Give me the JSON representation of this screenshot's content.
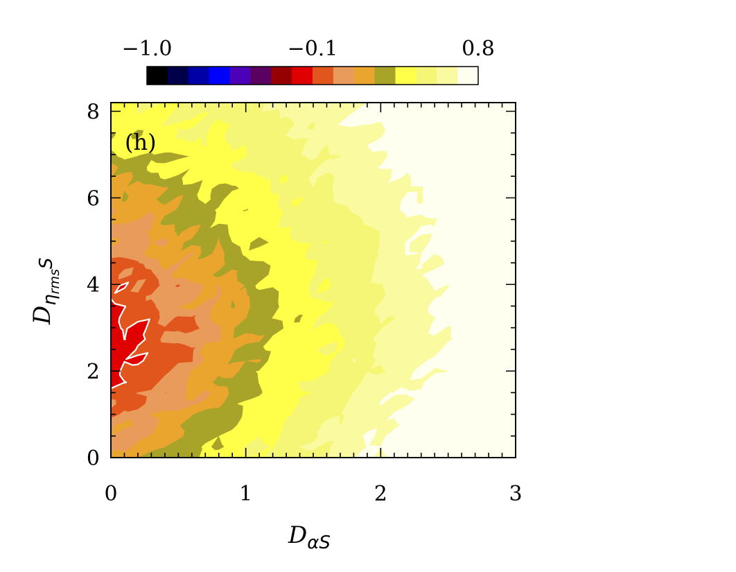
{
  "chart_data": {
    "type": "heatmap",
    "panel_label": "(h)",
    "xlabel": {
      "main": "D",
      "sub": "αS"
    },
    "ylabel": {
      "main": "D",
      "sub": "η",
      "subsub": "rms",
      "tail": "S"
    },
    "xlim": [
      0,
      3
    ],
    "ylim": [
      0,
      8.2
    ],
    "x_ticks": [
      0,
      1,
      2,
      3
    ],
    "x_tick_labels": [
      "0",
      "1",
      "2",
      "3"
    ],
    "y_ticks": [
      0,
      2,
      4,
      6,
      8
    ],
    "y_tick_labels": [
      "0",
      "2",
      "4",
      "6",
      "8"
    ],
    "colorbar": {
      "min": -1.0,
      "max": 0.8,
      "labels": [
        {
          "value": -1.0,
          "text": "−1.0"
        },
        {
          "value": -0.1,
          "text": "−0.1"
        },
        {
          "value": 0.8,
          "text": "0.8"
        }
      ],
      "colors": [
        "#000000",
        "#00004a",
        "#0000a8",
        "#0000ff",
        "#4c00b8",
        "#5a0060",
        "#960000",
        "#e00000",
        "#e0561c",
        "#e99b5c",
        "#eaa52e",
        "#a8a42a",
        "#ffff4a",
        "#f6f676",
        "#fafaa0",
        "#fffff0"
      ]
    },
    "levels": [
      {
        "value": -0.4,
        "color": "#e0561c"
      },
      {
        "value": -0.29,
        "color": "#e99b5c"
      },
      {
        "value": -0.18,
        "color": "#eaa52e"
      },
      {
        "value": -0.06,
        "color": "#a8a42a"
      },
      {
        "value": 0.06,
        "color": "#ffff4a"
      },
      {
        "value": 0.22,
        "color": "#f6f676"
      },
      {
        "value": 0.4,
        "color": "#fafaa0"
      },
      {
        "value": 0.6,
        "color": "#fffff0"
      }
    ],
    "base_color": "#e00000",
    "white_contour_level": -0.4,
    "field_model": {
      "description_free": true,
      "grid_nx": 31,
      "grid_ny": 34
    }
  }
}
